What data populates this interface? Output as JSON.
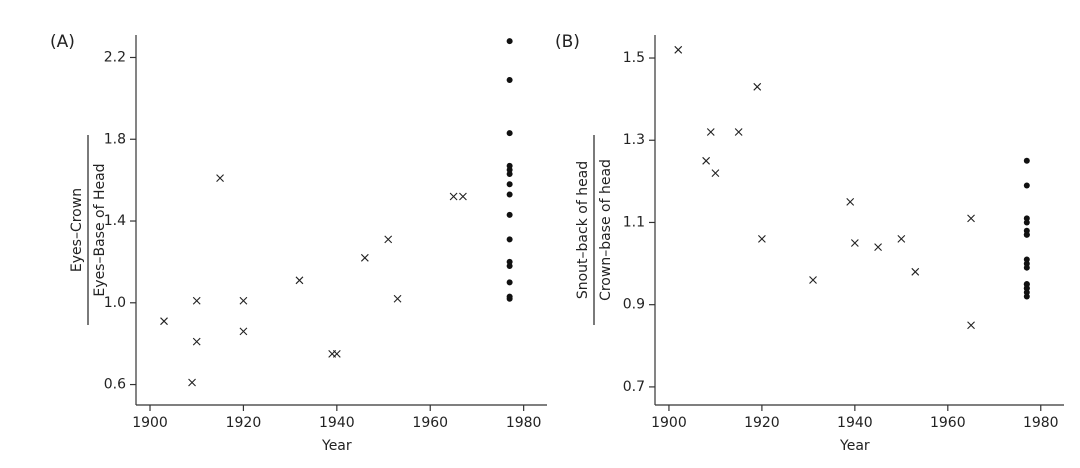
{
  "chart_data": [
    {
      "type": "scatter",
      "panel_label": "(A)",
      "xlabel": "Year",
      "ylabel_numerator": "Eyes–Crown",
      "ylabel_denominator": "Eyes–Base of Head",
      "xlim": [
        1897,
        1985
      ],
      "ylim": [
        0.5,
        2.31
      ],
      "xticks": [
        1900,
        1920,
        1940,
        1960,
        1980
      ],
      "yticks": [
        0.6,
        {
          "value": 1,
          "label": "1.0"
        },
        1.4,
        1.8,
        2.2
      ],
      "series": [
        {
          "color": "#222222",
          "marker": "x",
          "x": [
            1903,
            1909,
            1910,
            1910,
            1915,
            1920,
            1920,
            1932,
            1939,
            1940,
            1946,
            1951,
            1953,
            1965,
            1967
          ],
          "values": [
            0.91,
            0.61,
            1.01,
            0.81,
            1.61,
            1.01,
            0.86,
            1.11,
            0.75,
            0.75,
            1.22,
            1.31,
            1.02,
            1.52,
            1.52
          ]
        },
        {
          "color": "#111111",
          "marker": "dot",
          "x": [
            1977,
            1977,
            1977,
            1977,
            1977,
            1977,
            1977,
            1977,
            1977,
            1977,
            1977,
            1977,
            1977,
            1977,
            1977
          ],
          "values": [
            2.28,
            2.09,
            1.83,
            1.67,
            1.65,
            1.63,
            1.58,
            1.53,
            1.43,
            1.31,
            1.2,
            1.18,
            1.1,
            1.03,
            1.02
          ]
        }
      ]
    },
    {
      "type": "scatter",
      "panel_label": "(B)",
      "xlabel": "Year",
      "ylabel_numerator": "Snout–back of head",
      "ylabel_denominator": "Crown–base of head",
      "xlim": [
        1897,
        1985
      ],
      "ylim": [
        0.656,
        1.556
      ],
      "xticks": [
        1900,
        1920,
        1940,
        1960,
        1980
      ],
      "yticks": [
        0.7,
        0.9,
        1.1,
        1.3,
        1.5
      ],
      "series": [
        {
          "color": "#222222",
          "marker": "x",
          "x": [
            1902,
            1908,
            1909,
            1910,
            1915,
            1919,
            1920,
            1931,
            1939,
            1940,
            1945,
            1950,
            1953,
            1965,
            1965
          ],
          "values": [
            1.52,
            1.25,
            1.32,
            1.22,
            1.32,
            1.43,
            1.06,
            0.96,
            1.15,
            1.05,
            1.04,
            1.06,
            0.98,
            1.11,
            0.85
          ]
        },
        {
          "color": "#111111",
          "marker": "dot",
          "x": [
            1977,
            1977,
            1977,
            1977,
            1977,
            1977,
            1977,
            1977,
            1977,
            1977,
            1977,
            1977,
            1977,
            1977,
            1977,
            1977
          ],
          "values": [
            1.25,
            1.19,
            1.11,
            1.1,
            1.08,
            1.07,
            1.07,
            1.01,
            1.0,
            0.99,
            0.95,
            0.95,
            0.94,
            0.94,
            0.93,
            0.92
          ]
        }
      ]
    }
  ]
}
